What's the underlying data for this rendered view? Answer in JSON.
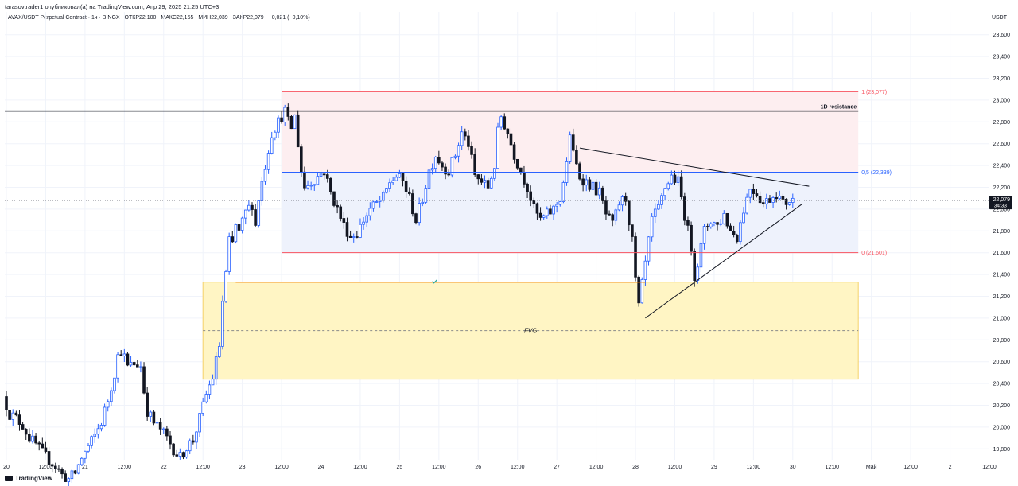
{
  "header": {
    "attribution": "tarasovtrader1 опубликовал(а) на TradingView.com, Апр 29, 2025 21:25 UTC+3",
    "symbol": "AVAX/USDT Perpetual Contract · 1ч · BINGX",
    "open": "ОТКР22,100",
    "high": "МАКС22,155",
    "low": "МИН22,039",
    "close": "ЗАКР22,079",
    "change": "−0,021 (−0,10%)"
  },
  "footer": {
    "logo_text": "TradingView"
  },
  "chart_data": {
    "type": "candlestick",
    "currency": "USDT",
    "y_range": [
      19700,
      23700
    ],
    "y_ticks": [
      19800,
      20000,
      20200,
      20400,
      20600,
      20800,
      21000,
      21200,
      21400,
      21600,
      21800,
      22000,
      22200,
      22400,
      22600,
      22800,
      23000,
      23200,
      23400,
      23600
    ],
    "y_tick_labels": [
      "19,800",
      "20,000",
      "20,200",
      "20,400",
      "20,600",
      "20,800",
      "21,000",
      "21,200",
      "21,400",
      "21,600",
      "21,800",
      "22,000",
      "22,200",
      "22,400",
      "22,600",
      "22,800",
      "23,000",
      "23,200",
      "23,400",
      "23,600"
    ],
    "x_range_hours": [
      0,
      246
    ],
    "x_ticks": [
      {
        "h": 0,
        "label": "20"
      },
      {
        "h": 12,
        "label": "12:00"
      },
      {
        "h": 24,
        "label": "21"
      },
      {
        "h": 36,
        "label": "12:00"
      },
      {
        "h": 48,
        "label": "22"
      },
      {
        "h": 60,
        "label": "12:00"
      },
      {
        "h": 72,
        "label": "23"
      },
      {
        "h": 84,
        "label": "12:00"
      },
      {
        "h": 96,
        "label": "24"
      },
      {
        "h": 108,
        "label": "12:00"
      },
      {
        "h": 120,
        "label": "25"
      },
      {
        "h": 132,
        "label": "12:00"
      },
      {
        "h": 144,
        "label": "26"
      },
      {
        "h": 156,
        "label": "12:00"
      },
      {
        "h": 168,
        "label": "27"
      },
      {
        "h": 180,
        "label": "12:00"
      },
      {
        "h": 192,
        "label": "28"
      },
      {
        "h": 204,
        "label": "12:00"
      },
      {
        "h": 216,
        "label": "29"
      },
      {
        "h": 228,
        "label": "12:00"
      },
      {
        "h": 240,
        "label": "30"
      },
      {
        "h": 252,
        "label": "12:00"
      },
      {
        "h": 264,
        "label": "Май"
      },
      {
        "h": 276,
        "label": "12:00"
      },
      {
        "h": 288,
        "label": "2"
      },
      {
        "h": 300,
        "label": "12:00"
      }
    ],
    "last_price": {
      "value": 22079,
      "label": "22,079",
      "countdown": "34:33"
    },
    "price_path": [
      [
        0,
        20280
      ],
      [
        2,
        20120
      ],
      [
        4,
        20080
      ],
      [
        6,
        20020
      ],
      [
        8,
        19900
      ],
      [
        10,
        19840
      ],
      [
        12,
        19760
      ],
      [
        14,
        19700
      ],
      [
        16,
        19640
      ],
      [
        18,
        19560
      ],
      [
        20,
        19520
      ],
      [
        22,
        19580
      ],
      [
        24,
        19720
      ],
      [
        26,
        19820
      ],
      [
        28,
        19920
      ],
      [
        30,
        20050
      ],
      [
        32,
        20250
      ],
      [
        34,
        20500
      ],
      [
        35,
        20650
      ],
      [
        36,
        20700
      ],
      [
        37,
        20640
      ],
      [
        38,
        20550
      ],
      [
        40,
        20580
      ],
      [
        42,
        20560
      ],
      [
        43,
        20330
      ],
      [
        44,
        20150
      ],
      [
        46,
        20040
      ],
      [
        48,
        19980
      ],
      [
        50,
        19900
      ],
      [
        52,
        19800
      ],
      [
        54,
        19720
      ],
      [
        56,
        19820
      ],
      [
        58,
        19880
      ],
      [
        60,
        20080
      ],
      [
        62,
        20300
      ],
      [
        64,
        20460
      ],
      [
        66,
        20750
      ],
      [
        67,
        21150
      ],
      [
        68,
        21400
      ],
      [
        69,
        21700
      ],
      [
        70,
        21680
      ],
      [
        71,
        21850
      ],
      [
        72,
        21780
      ],
      [
        74,
        21970
      ],
      [
        76,
        22050
      ],
      [
        77,
        21850
      ],
      [
        78,
        22100
      ],
      [
        80,
        22400
      ],
      [
        82,
        22700
      ],
      [
        84,
        22800
      ],
      [
        86,
        22900
      ],
      [
        87,
        22800
      ],
      [
        88,
        22750
      ],
      [
        89,
        22850
      ],
      [
        90,
        22600
      ],
      [
        91,
        22350
      ],
      [
        92,
        22200
      ],
      [
        94,
        22250
      ],
      [
        96,
        22300
      ],
      [
        98,
        22350
      ],
      [
        100,
        22150
      ],
      [
        102,
        22000
      ],
      [
        104,
        21850
      ],
      [
        106,
        21750
      ],
      [
        108,
        21780
      ],
      [
        110,
        21900
      ],
      [
        112,
        22000
      ],
      [
        114,
        22050
      ],
      [
        116,
        22100
      ],
      [
        118,
        22250
      ],
      [
        120,
        22300
      ],
      [
        122,
        22250
      ],
      [
        124,
        22100
      ],
      [
        126,
        21900
      ],
      [
        128,
        22100
      ],
      [
        130,
        22350
      ],
      [
        132,
        22500
      ],
      [
        134,
        22400
      ],
      [
        136,
        22350
      ],
      [
        138,
        22500
      ],
      [
        140,
        22700
      ],
      [
        142,
        22600
      ],
      [
        144,
        22300
      ],
      [
        146,
        22250
      ],
      [
        148,
        22200
      ],
      [
        150,
        22400
      ],
      [
        151,
        22700
      ],
      [
        152,
        22850
      ],
      [
        154,
        22700
      ],
      [
        156,
        22500
      ],
      [
        158,
        22350
      ],
      [
        160,
        22200
      ],
      [
        162,
        22000
      ],
      [
        164,
        21900
      ],
      [
        166,
        21950
      ],
      [
        168,
        22000
      ],
      [
        170,
        22100
      ],
      [
        172,
        22400
      ],
      [
        173,
        22700
      ],
      [
        174,
        22500
      ],
      [
        176,
        22300
      ],
      [
        178,
        22250
      ],
      [
        180,
        22200
      ],
      [
        182,
        22150
      ],
      [
        184,
        21950
      ],
      [
        186,
        21850
      ],
      [
        188,
        22050
      ],
      [
        190,
        22100
      ],
      [
        192,
        21700
      ],
      [
        193,
        21350
      ],
      [
        194,
        21100
      ],
      [
        196,
        21500
      ],
      [
        198,
        21900
      ],
      [
        200,
        22000
      ],
      [
        202,
        22200
      ],
      [
        204,
        22300
      ],
      [
        206,
        22250
      ],
      [
        208,
        21950
      ],
      [
        210,
        21650
      ],
      [
        211,
        21400
      ],
      [
        212,
        21500
      ],
      [
        214,
        21800
      ],
      [
        216,
        21900
      ],
      [
        218,
        21850
      ],
      [
        220,
        21950
      ],
      [
        222,
        21800
      ],
      [
        224,
        21750
      ],
      [
        226,
        22000
      ],
      [
        228,
        22200
      ],
      [
        230,
        22150
      ],
      [
        232,
        22050
      ],
      [
        234,
        22100
      ],
      [
        236,
        22150
      ],
      [
        238,
        22050
      ],
      [
        240,
        22079
      ]
    ],
    "annotations": {
      "resistance": {
        "price": 22900,
        "label": "1D resistance"
      },
      "fib_levels": [
        {
          "price": 23077,
          "label": "1 (23,077)",
          "color": "#f7525f"
        },
        {
          "price": 22339,
          "label": "0,5 (22,339)",
          "color": "#2962ff"
        },
        {
          "price": 21601,
          "label": "0 (21,601)",
          "color": "#f7525f"
        }
      ],
      "fib_box": {
        "h_start": 84,
        "h_end": 260
      },
      "fvg": {
        "label": "FVG",
        "top": 21330,
        "bottom": 20440,
        "mid": 20885,
        "h_start": 60,
        "h_end": 260
      },
      "orange_line": {
        "price": 21330,
        "h_start": 70,
        "h_end": 195
      },
      "triangle_upper": [
        [
          175,
          22560
        ],
        [
          245,
          22210
        ]
      ],
      "triangle_lower": [
        [
          195,
          21000
        ],
        [
          243,
          22050
        ]
      ],
      "colors": {
        "up": "#2962ff",
        "down": "#131722",
        "fib_red": "#f7525f",
        "fib_blue": "#2962ff",
        "fvg_fill": "#fff5c4",
        "fvg_border": "#f5d26a",
        "orange": "#f57c00",
        "check": "#26a69a"
      }
    }
  }
}
